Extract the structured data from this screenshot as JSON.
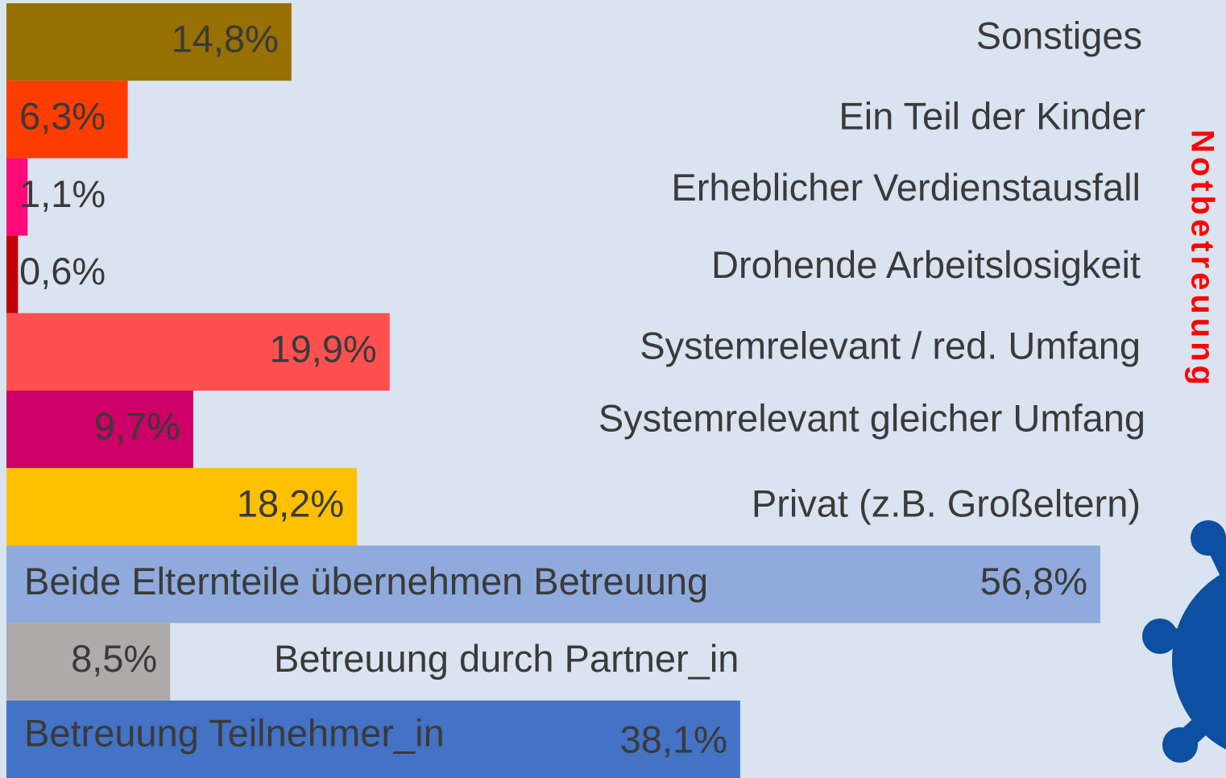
{
  "chart_data": {
    "type": "barh",
    "side_label": "Notbetreuung",
    "categories": [
      "Sonstiges",
      "Ein Teil der Kinder",
      "Erheblicher Verdienstausfall",
      "Drohende Arbeitslosigkeit",
      "Systemrelevant / red. Umfang",
      "Systemrelevant gleicher Umfang",
      "Privat (z.B. Großeltern)",
      "Beide Elternteile übernehmen Betreuung",
      "Betreuung durch Partner_in",
      "Betreuung Teilnehmer_in"
    ],
    "values": [
      14.8,
      6.3,
      1.1,
      0.6,
      19.9,
      9.7,
      18.2,
      56.8,
      8.5,
      38.1
    ],
    "value_labels": [
      "14,8%",
      "6,3%",
      "1,1%",
      "0,6%",
      "19,9%",
      "9,7%",
      "18,2%",
      "56,8%",
      "8,5%",
      "38,1%"
    ],
    "colors": [
      "#967000",
      "#ff3d00",
      "#ff0a78",
      "#c00000",
      "#ff5050",
      "#cc0066",
      "#ffc000",
      "#8faadc",
      "#aeaaaa",
      "#4472c4"
    ]
  }
}
